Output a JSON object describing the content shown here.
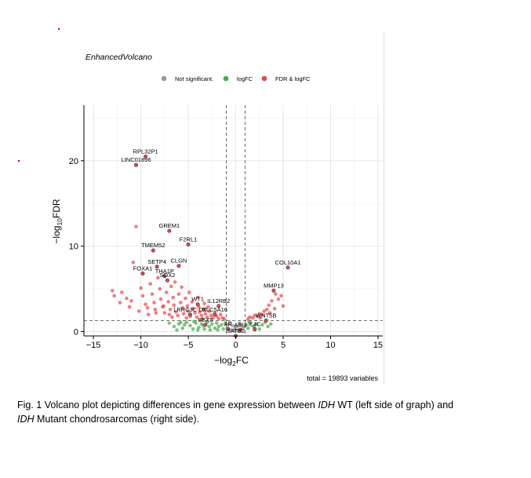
{
  "chart_data": {
    "type": "scatter",
    "title": "EnhancedVolcano",
    "xlabel": "−log",
    "xlabel_sub": "2",
    "xlabel_tail": "FC",
    "ylabel": "−log",
    "ylabel_sub": "10",
    "ylabel_tail": "FDR",
    "xlim": [
      -16,
      15.5
    ],
    "ylim": [
      -0.5,
      26.5
    ],
    "xticks": [
      -15,
      -10,
      -5,
      0,
      5,
      10,
      15
    ],
    "xtick_labels": [
      "−15",
      "−10",
      "−5",
      "0",
      "5",
      "10",
      "15"
    ],
    "yticks": [
      0,
      10,
      20
    ],
    "ytick_labels": [
      "0",
      "10",
      "20"
    ],
    "grid": true,
    "legend_position": "top",
    "legend": [
      {
        "label": "Not significant.",
        "color": "#999999"
      },
      {
        "label": "logFC",
        "color": "#4aa84a"
      },
      {
        "label": "FDR & logFC",
        "color": "#e8474b"
      }
    ],
    "cutoff_x": [
      -1,
      1
    ],
    "cutoff_y": 1.3,
    "caption": "total = 19893 variables",
    "labeled_points": [
      {
        "label": "RPL32P1",
        "x": -9.5,
        "y": 20.5
      },
      {
        "label": "LINC01896",
        "x": -10.5,
        "y": 19.5
      },
      {
        "label": "GREM1",
        "x": -7.0,
        "y": 11.8
      },
      {
        "label": "TMEM52",
        "x": -8.7,
        "y": 9.5
      },
      {
        "label": "F2RL1",
        "x": -5.0,
        "y": 10.2
      },
      {
        "label": "SETP4",
        "x": -8.3,
        "y": 7.6
      },
      {
        "label": "CLGN",
        "x": -6.0,
        "y": 7.7
      },
      {
        "label": "THA1P",
        "x": -7.5,
        "y": 6.5
      },
      {
        "label": "FOXA1",
        "x": -9.8,
        "y": 6.8
      },
      {
        "label": "SOX2",
        "x": -7.2,
        "y": 6.0
      },
      {
        "label": "COL10A1",
        "x": 5.5,
        "y": 7.5
      },
      {
        "label": "MMP13",
        "x": 4.0,
        "y": 4.8
      },
      {
        "label": "WT1",
        "x": -4.0,
        "y": 3.2
      },
      {
        "label": "IL12RB2",
        "x": -1.8,
        "y": 3.0
      },
      {
        "label": "LRRC3C-DT",
        "x": -4.8,
        "y": 2.0
      },
      {
        "label": "SLC5A16",
        "x": -2.2,
        "y": 2.0
      },
      {
        "label": "WNT5B",
        "x": 3.2,
        "y": 1.3
      },
      {
        "label": "BEX5",
        "x": -3.2,
        "y": 0.8
      },
      {
        "label": "AR",
        "x": -0.8,
        "y": 0.3
      },
      {
        "label": "ABI3",
        "x": 0.5,
        "y": 0.2
      },
      {
        "label": "IL4C",
        "x": 2.0,
        "y": 0.3
      },
      {
        "label": "SATB2",
        "x": 0.0,
        "y": -0.5
      }
    ],
    "points_red": [
      [
        -13,
        4.8
      ],
      [
        -12.8,
        4.2
      ],
      [
        -12,
        4.6
      ],
      [
        -11.5,
        3.9
      ],
      [
        -11,
        3.6
      ],
      [
        -10.5,
        12.3
      ],
      [
        -10.8,
        8.1
      ],
      [
        -10,
        5.1
      ],
      [
        -9.8,
        4.2
      ],
      [
        -9.5,
        3.2
      ],
      [
        -9.3,
        2.8
      ],
      [
        -9.0,
        5.6
      ],
      [
        -8.8,
        4.4
      ],
      [
        -8.6,
        3.4
      ],
      [
        -8.5,
        2.6
      ],
      [
        -8.2,
        6.3
      ],
      [
        -8.0,
        5.0
      ],
      [
        -7.9,
        3.8
      ],
      [
        -7.7,
        2.9
      ],
      [
        -7.5,
        2.2
      ],
      [
        -7.3,
        4.6
      ],
      [
        -7.1,
        3.5
      ],
      [
        -6.9,
        2.6
      ],
      [
        -6.8,
        5.3
      ],
      [
        -6.6,
        4.0
      ],
      [
        -6.5,
        3.1
      ],
      [
        -6.3,
        2.3
      ],
      [
        -6.1,
        1.9
      ],
      [
        -6.0,
        4.4
      ],
      [
        -5.8,
        3.4
      ],
      [
        -5.6,
        2.8
      ],
      [
        -5.5,
        2.1
      ],
      [
        -5.3,
        3.9
      ],
      [
        -5.1,
        3.0
      ],
      [
        -5.0,
        2.4
      ],
      [
        -4.8,
        1.8
      ],
      [
        -4.6,
        3.5
      ],
      [
        -4.5,
        2.7
      ],
      [
        -4.3,
        2.2
      ],
      [
        -4.1,
        1.7
      ],
      [
        -3.9,
        2.9
      ],
      [
        -3.8,
        2.3
      ],
      [
        -3.6,
        1.9
      ],
      [
        -3.4,
        2.6
      ],
      [
        -3.2,
        2.1
      ],
      [
        -3.0,
        1.7
      ],
      [
        -2.8,
        2.4
      ],
      [
        -2.6,
        1.9
      ],
      [
        -2.4,
        1.6
      ],
      [
        -2.2,
        2.2
      ],
      [
        -2.0,
        1.8
      ],
      [
        -1.8,
        1.5
      ],
      [
        -1.6,
        2.0
      ],
      [
        -1.4,
        1.6
      ],
      [
        -1.2,
        1.5
      ],
      [
        -6.4,
        5.8
      ],
      [
        -5.7,
        5.2
      ],
      [
        -4.9,
        4.6
      ],
      [
        -7.6,
        3.0
      ],
      [
        -8.4,
        2.2
      ],
      [
        -9.2,
        2.0
      ],
      [
        -10.2,
        2.4
      ],
      [
        -11.2,
        2.9
      ],
      [
        -12.2,
        3.4
      ],
      [
        -5.2,
        1.6
      ],
      [
        -6.7,
        1.7
      ],
      [
        -3.3,
        3.3
      ],
      [
        -2.9,
        2.9
      ],
      [
        -4.0,
        4.0
      ],
      [
        -3.5,
        1.5
      ],
      [
        -7.0,
        2.0
      ],
      [
        1.3,
        1.5
      ],
      [
        1.5,
        1.7
      ],
      [
        1.8,
        1.6
      ],
      [
        2.0,
        1.9
      ],
      [
        2.3,
        1.8
      ],
      [
        2.5,
        2.1
      ],
      [
        2.8,
        2.0
      ],
      [
        3.0,
        2.4
      ],
      [
        3.3,
        2.6
      ],
      [
        3.5,
        3.1
      ],
      [
        3.8,
        3.6
      ],
      [
        4.2,
        4.4
      ],
      [
        4.5,
        3.8
      ],
      [
        4.8,
        4.2
      ],
      [
        5.0,
        3.0
      ],
      [
        3.6,
        2.2
      ],
      [
        2.6,
        1.6
      ],
      [
        4.1,
        2.7
      ]
    ],
    "points_green": [
      [
        -6.5,
        0.6
      ],
      [
        -6.0,
        0.9
      ],
      [
        -5.6,
        0.4
      ],
      [
        -5.2,
        1.1
      ],
      [
        -4.8,
        0.7
      ],
      [
        -4.5,
        0.3
      ],
      [
        -4.2,
        1.0
      ],
      [
        -3.9,
        0.5
      ],
      [
        -3.6,
        0.9
      ],
      [
        -3.3,
        0.3
      ],
      [
        -3.0,
        1.1
      ],
      [
        -2.8,
        0.6
      ],
      [
        -2.5,
        0.9
      ],
      [
        -2.2,
        0.4
      ],
      [
        -2.0,
        1.0
      ],
      [
        -1.8,
        0.6
      ],
      [
        -1.5,
        0.8
      ],
      [
        -1.3,
        0.3
      ],
      [
        -1.1,
        1.0
      ],
      [
        -7.0,
        1.0
      ],
      [
        -6.2,
        0.2
      ],
      [
        -5.4,
        0.8
      ],
      [
        -4.0,
        0.2
      ],
      [
        -3.4,
        0.7
      ],
      [
        1.1,
        0.8
      ],
      [
        1.3,
        0.4
      ],
      [
        1.6,
        1.0
      ],
      [
        1.9,
        0.6
      ],
      [
        2.2,
        0.9
      ],
      [
        2.5,
        0.3
      ],
      [
        2.8,
        0.8
      ],
      [
        3.1,
        1.1
      ],
      [
        3.4,
        0.6
      ],
      [
        3.7,
        0.9
      ],
      [
        1.4,
        1.2
      ],
      [
        2.0,
        0.2
      ],
      [
        -2.7,
        0.2
      ],
      [
        -1.9,
        0.2
      ],
      [
        -5.8,
        1.1
      ],
      [
        -4.4,
        1.2
      ]
    ],
    "points_grey": [
      [
        -0.9,
        0.4
      ],
      [
        -0.7,
        0.9
      ],
      [
        -0.5,
        0.2
      ],
      [
        -0.3,
        0.7
      ],
      [
        -0.1,
        0.3
      ],
      [
        0.1,
        0.6
      ],
      [
        0.3,
        0.2
      ],
      [
        0.5,
        0.8
      ],
      [
        0.7,
        0.4
      ],
      [
        0.9,
        0.6
      ],
      [
        -0.6,
        1.1
      ],
      [
        0.4,
        1.0
      ],
      [
        -0.2,
        0.1
      ],
      [
        0.2,
        0.1
      ],
      [
        0.0,
        0.5
      ]
    ]
  },
  "figure_caption": {
    "prefix": "Fig. 1 Volcano plot depicting differences in gene expression between ",
    "italic1": "IDH",
    "middle": " WT (left side of graph) and ",
    "italic2": "IDH",
    "suffix": " Mutant chondrosarcomas (right side)."
  }
}
